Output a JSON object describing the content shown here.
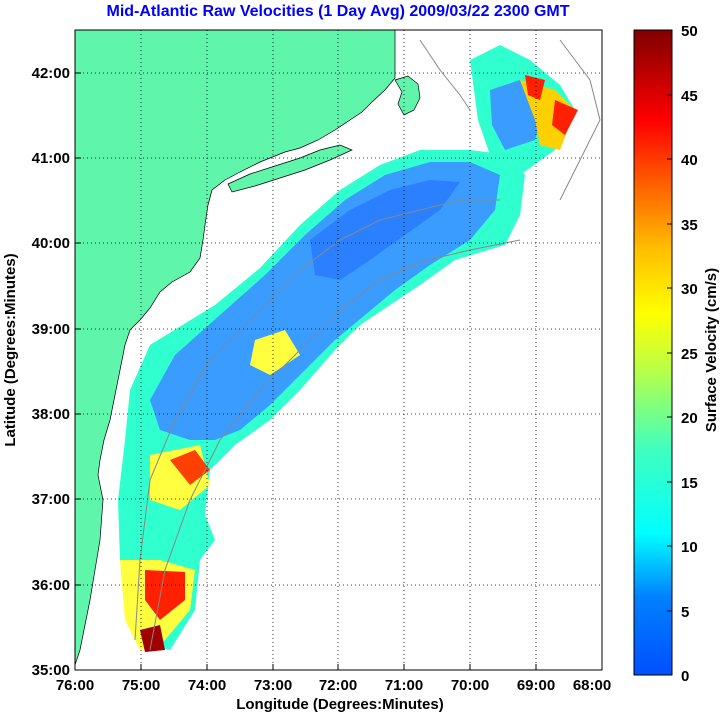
{
  "title": "Mid-Atlantic Raw Velocities (1 Day Avg) 2009/03/22 2300 GMT",
  "map": {
    "xlabel": "Longitude (Degrees:Minutes)",
    "ylabel": "Latitude (Degrees:Minutes)",
    "x_ticks": [
      "76:00",
      "75:00",
      "74:00",
      "73:00",
      "72:00",
      "71:00",
      "70:00",
      "69:00",
      "68:00"
    ],
    "y_ticks": [
      "42:00",
      "41:00",
      "40:00",
      "39:00",
      "38:00",
      "37:00",
      "36:00",
      "35:00"
    ],
    "lon_range": [
      -76,
      -68
    ],
    "lat_range": [
      35,
      42.5
    ],
    "land_color": "#5ff5aa",
    "grid": "dotted"
  },
  "colorbar": {
    "label": "Surface Velocity (cm/s)",
    "tick_labels": [
      "0",
      "5",
      "10",
      "15",
      "20",
      "25",
      "30",
      "35",
      "40",
      "45",
      "50"
    ],
    "range": [
      0,
      50
    ],
    "colormap": "jet"
  }
}
